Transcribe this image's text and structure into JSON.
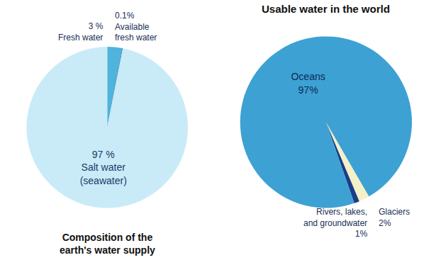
{
  "chart_data": [
    {
      "type": "pie",
      "title": "Composition of the earth's water supply",
      "categories": [
        "Fresh water",
        "Available fresh water",
        "Salt water (seawater)"
      ],
      "values": [
        3,
        0.1,
        97
      ],
      "value_labels": [
        "3 %",
        "0.1%",
        "97 %"
      ],
      "colors": [
        "#4fb3dc",
        "#1e5a9e",
        "#c9ebf7"
      ],
      "data_labels": true
    },
    {
      "type": "pie",
      "title": "Usable water in the world",
      "categories": [
        "Glaciers",
        "Rivers, lakes, and groundwater",
        "Oceans"
      ],
      "values": [
        2,
        1,
        97
      ],
      "value_labels": [
        "2%",
        "1%",
        "97%"
      ],
      "colors": [
        "#f4f0c8",
        "#1b3d86",
        "#3da1d3"
      ],
      "data_labels": true
    }
  ]
}
